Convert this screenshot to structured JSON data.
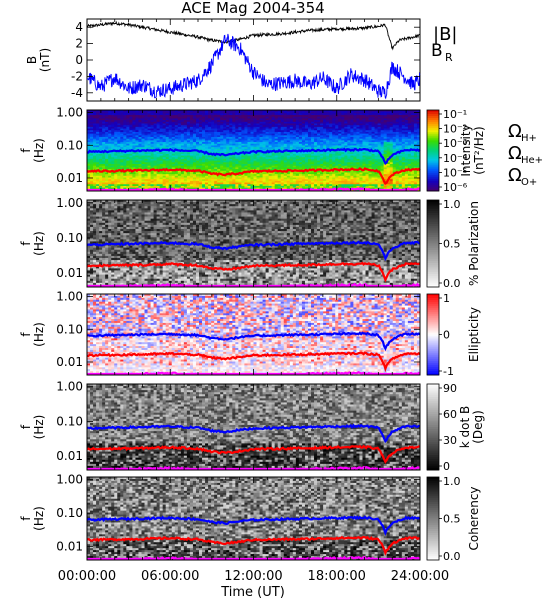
{
  "figure": {
    "title": "ACE Mag 2004-354",
    "xlabel": "Time (UT)",
    "xtick_labels": [
      "00:00:00",
      "06:00:00",
      "12:00:00",
      "18:00:00",
      "24:00:00"
    ]
  },
  "colors": {
    "B_total": "#000000",
    "B_R": "#0000ff",
    "H_plus": "#0000ff",
    "He_plus": "#ff0000",
    "O_plus": "#ff00ff"
  },
  "legend_top": {
    "B_total": "|B|",
    "B_R": "B",
    "B_R_sub": "R"
  },
  "legend_gyro": [
    {
      "symbol": "Ω",
      "sub": "H+",
      "color": "#0000ff"
    },
    {
      "symbol": "Ω",
      "sub": "He+",
      "color": "#ff0000"
    },
    {
      "symbol": "Ω",
      "sub": "O+",
      "color": "#ff00ff"
    }
  ],
  "chart_data": [
    {
      "type": "line",
      "panel": "magnetic-field",
      "ylabel": "B (nT)",
      "ylabel_main": "B",
      "ylabel_unit": "(nT)",
      "x": [
        0,
        1,
        2,
        3,
        4,
        5,
        6,
        7,
        8,
        9,
        10,
        11,
        12,
        13,
        14,
        15,
        16,
        17,
        18,
        19,
        20,
        21,
        21.5,
        22,
        22.5,
        23,
        23.5,
        24
      ],
      "xlim": [
        0,
        24
      ],
      "ylim": [
        -5,
        5
      ],
      "yticks": [
        4,
        2,
        0,
        -2,
        -4
      ],
      "ytick_labels": [
        "4",
        "2",
        "0",
        "-2",
        "-4"
      ],
      "series": [
        {
          "name": "|B|",
          "values": [
            4.1,
            4.3,
            4.5,
            4.3,
            4.0,
            3.7,
            3.4,
            3.1,
            2.8,
            2.4,
            2.2,
            2.5,
            3.0,
            3.1,
            3.2,
            3.4,
            3.6,
            3.7,
            3.8,
            3.8,
            3.9,
            4.1,
            4.3,
            1.4,
            2.4,
            2.6,
            2.8,
            3.0
          ]
        },
        {
          "name": "B_R",
          "values": [
            -2.0,
            -3.3,
            -2.1,
            -3.5,
            -3.0,
            -3.8,
            -3.5,
            -3.0,
            -2.5,
            -0.5,
            2.5,
            1.5,
            -1.5,
            -3.0,
            -2.8,
            -2.5,
            -3.0,
            -2.2,
            -3.5,
            -1.8,
            -2.4,
            -3.8,
            -4.0,
            -0.8,
            -1.5,
            -2.2,
            -3.0,
            -2.4
          ]
        }
      ]
    },
    {
      "type": "heatmap",
      "panel": "intensity",
      "ylabel": "f (Hz)",
      "yticks": [
        1.0,
        0.1,
        0.01
      ],
      "ytick_labels": [
        "1.00",
        "0.10",
        "0.01"
      ],
      "ylim": [
        0.004,
        1.2
      ],
      "yscale": "log",
      "colorbar_label": "Intensity (nT²/Hz)",
      "colorbar_ticks": [
        "10⁻¹",
        "10⁻²",
        "10⁻³",
        "10⁻⁴",
        "10⁻⁵",
        "10⁻⁶"
      ],
      "colorbar_range": [
        1e-06,
        0.1
      ]
    },
    {
      "type": "heatmap",
      "panel": "polarization",
      "ylabel": "f (Hz)",
      "yticks": [
        1.0,
        0.1,
        0.01
      ],
      "ytick_labels": [
        "1.00",
        "0.10",
        "0.01"
      ],
      "ylim": [
        0.004,
        1.2
      ],
      "yscale": "log",
      "colorbar_label": "% Polarization",
      "colorbar_ticks": [
        "1.0",
        "0.5",
        "0.0"
      ],
      "colorbar_range": [
        0,
        1
      ]
    },
    {
      "type": "heatmap",
      "panel": "ellipticity",
      "ylabel": "f (Hz)",
      "yticks": [
        1.0,
        0.1,
        0.01
      ],
      "ytick_labels": [
        "1.00",
        "0.10",
        "0.01"
      ],
      "ylim": [
        0.004,
        1.2
      ],
      "yscale": "log",
      "colorbar_label": "Ellipticity",
      "colorbar_ticks": [
        "1",
        "0",
        "-1"
      ],
      "colorbar_range": [
        -1,
        1
      ]
    },
    {
      "type": "heatmap",
      "panel": "kdotb",
      "ylabel": "f (Hz)",
      "yticks": [
        1.0,
        0.1,
        0.01
      ],
      "ytick_labels": [
        "1.00",
        "0.10",
        "0.01"
      ],
      "ylim": [
        0.004,
        1.2
      ],
      "yscale": "log",
      "colorbar_label": "k dot B (Deg)",
      "colorbar_ticks": [
        "90",
        "60",
        "30",
        "0"
      ],
      "colorbar_range": [
        0,
        90
      ]
    },
    {
      "type": "heatmap",
      "panel": "coherency",
      "ylabel": "f (Hz)",
      "yticks": [
        1.0,
        0.1,
        0.01
      ],
      "ytick_labels": [
        "1.00",
        "0.10",
        "0.01"
      ],
      "ylim": [
        0.004,
        1.2
      ],
      "yscale": "log",
      "colorbar_label": "Coherency",
      "colorbar_ticks": [
        "1.0",
        "0.5",
        "0.0"
      ],
      "colorbar_range": [
        0,
        1
      ]
    },
    {
      "type": "line",
      "panel": "gyrofrequency-overlays",
      "x": [
        0,
        2,
        4,
        6,
        8,
        9,
        10,
        11,
        12,
        14,
        16,
        18,
        20,
        21,
        21.5,
        22,
        23,
        24
      ],
      "xlim": [
        0,
        24
      ],
      "series": [
        {
          "name": "Ω H+",
          "values": [
            0.063,
            0.066,
            0.069,
            0.072,
            0.066,
            0.054,
            0.05,
            0.057,
            0.063,
            0.066,
            0.069,
            0.072,
            0.074,
            0.066,
            0.026,
            0.05,
            0.072,
            0.072
          ]
        },
        {
          "name": "Ω He+",
          "values": [
            0.016,
            0.0165,
            0.017,
            0.018,
            0.0165,
            0.0135,
            0.0125,
            0.014,
            0.016,
            0.0165,
            0.017,
            0.018,
            0.0185,
            0.0165,
            0.0065,
            0.0125,
            0.018,
            0.018
          ]
        },
        {
          "name": "Ω O+",
          "values": [
            0.004,
            0.0041,
            0.0043,
            0.0045,
            0.0041,
            0.0034,
            0.0031,
            0.0035,
            0.004,
            0.0041,
            0.0043,
            0.0045,
            0.0046,
            0.0041,
            0.0016,
            0.0031,
            0.0045,
            0.0045
          ]
        }
      ]
    }
  ]
}
